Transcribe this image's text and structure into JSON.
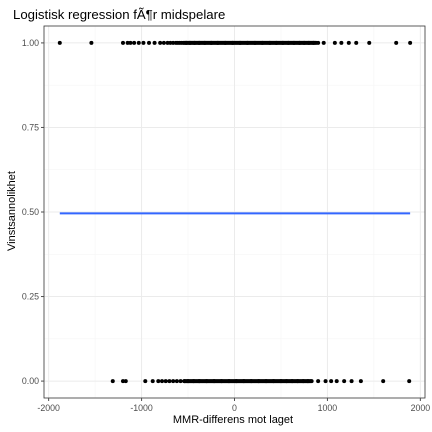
{
  "chart_data": {
    "type": "scatter",
    "title": "Logistisk regression fÃ¶r midspelare",
    "xlabel": "MMR-differens mot laget",
    "ylabel": "Vinstsannolikhet",
    "xlim": [
      -2050,
      2050
    ],
    "ylim": [
      -0.05,
      1.05
    ],
    "xticks": [
      {
        "value": -2000,
        "label": "-2000"
      },
      {
        "value": -1000,
        "label": "-1000"
      },
      {
        "value": 0,
        "label": "0"
      },
      {
        "value": 1000,
        "label": "1000"
      },
      {
        "value": 2000,
        "label": "2000"
      }
    ],
    "yticks": [
      {
        "value": 0.0,
        "label": "0.00"
      },
      {
        "value": 0.25,
        "label": "0.25"
      },
      {
        "value": 0.5,
        "label": "0.50"
      },
      {
        "value": 0.75,
        "label": "0.75"
      },
      {
        "value": 1.0,
        "label": "1.00"
      }
    ],
    "grid": true,
    "legend": "none",
    "points_win": {
      "y": 1,
      "x": [
        -1880,
        -1540,
        -1200,
        -1150,
        -1120,
        -1080,
        -1030,
        -980,
        -920,
        -860,
        -800,
        -760,
        -720,
        -690,
        -660,
        -630,
        -610,
        -590,
        -570,
        -550,
        -520,
        -480,
        -430,
        -380,
        -320,
        -250,
        -180,
        -100,
        -20,
        60,
        140,
        220,
        300,
        380,
        450,
        520,
        580,
        640,
        700,
        750,
        800,
        850,
        900,
        960,
        1080,
        1150,
        1230,
        1310,
        1450,
        1740,
        1890
      ]
    },
    "points_loss": {
      "y": 0,
      "x": [
        -1310,
        -1200,
        -1170,
        -960,
        -880,
        -820,
        -780,
        -740,
        -700,
        -660,
        -620,
        -580,
        -540,
        -500,
        -440,
        -380,
        -300,
        -220,
        -140,
        -60,
        20,
        100,
        180,
        260,
        340,
        420,
        500,
        560,
        620,
        680,
        740,
        790,
        830,
        900,
        980,
        1040,
        1100,
        1180,
        1260,
        1360,
        1600,
        1880
      ]
    },
    "fit_line": {
      "x": [
        -1880,
        1890
      ],
      "y": [
        0.496,
        0.496
      ],
      "color": "#3366ff"
    },
    "colors": {
      "panel_background": "#ffffff",
      "grid_major": "#ebebeb",
      "grid_minor": "#f5f5f5",
      "panel_border": "#333333",
      "points": "#000000",
      "tick_text": "#4d4d4d",
      "label_text": "#000000"
    }
  }
}
